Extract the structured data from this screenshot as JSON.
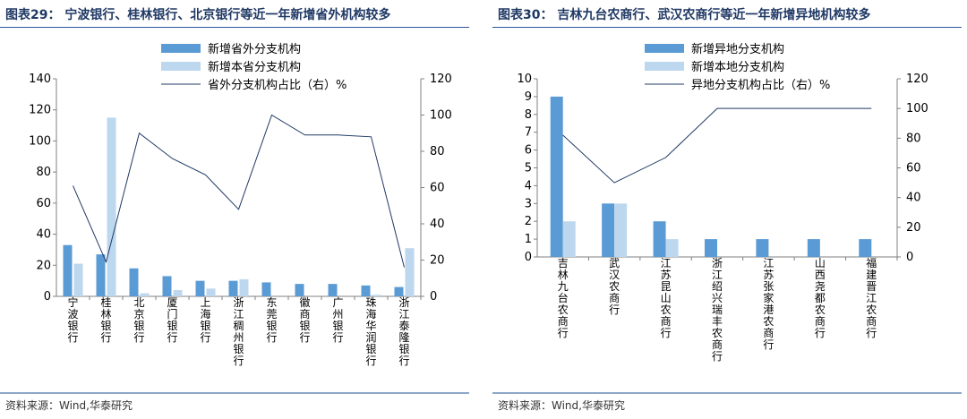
{
  "charts": [
    {
      "title": "图表29：  宁波银行、桂林银行、北京银行等近一年新增省外机构较多",
      "source": "资料来源：Wind,华泰研究",
      "legend": [
        {
          "label": "新增省外分支机构"
        },
        {
          "label": "新增本省分支机构"
        },
        {
          "label": "省外分支机构占比（右）%"
        }
      ]
    },
    {
      "title": "图表30：  吉林九台农商行、武汉农商行等近一年新增异地机构较多",
      "source": "资料来源：Wind,华泰研究",
      "legend": [
        {
          "label": "新增异地分支机构"
        },
        {
          "label": "新增本地分支机构"
        },
        {
          "label": "异地分支机构占比（右）%"
        }
      ]
    }
  ],
  "colors": {
    "bar_dark": "#5b9bd5",
    "bar_light": "#bdd7ee",
    "line": "#1f3864",
    "title": "#1f3864"
  },
  "chart_data": [
    {
      "type": "bar",
      "title": "宁波银行、桂林银行、北京银行等近一年新增省外机构较多",
      "categories": [
        "宁波银行",
        "桂林银行",
        "北京银行",
        "厦门银行",
        "上海银行",
        "浙江稠州银行",
        "东莞银行",
        "徽商银行",
        "广州银行",
        "珠海华润银行",
        "浙江泰隆银行"
      ],
      "series": [
        {
          "name": "新增省外分支机构",
          "kind": "bar",
          "axis": "left",
          "values": [
            33,
            27,
            18,
            13,
            10,
            10,
            9,
            8,
            8,
            7,
            6
          ]
        },
        {
          "name": "新增本省分支机构",
          "kind": "bar",
          "axis": "left",
          "values": [
            21,
            115,
            2,
            4,
            5,
            11,
            0,
            0,
            0,
            1,
            31
          ]
        },
        {
          "name": "省外分支机构占比（右）%",
          "kind": "line",
          "axis": "right",
          "values": [
            61,
            19,
            90,
            76,
            67,
            48,
            100,
            89,
            89,
            88,
            16
          ]
        }
      ],
      "ylim_left": [
        0,
        140
      ],
      "yticks_left": [
        0,
        20,
        40,
        60,
        80,
        100,
        120,
        140
      ],
      "ylim_right": [
        0,
        120
      ],
      "yticks_right": [
        0,
        20,
        40,
        60,
        80,
        100,
        120
      ]
    },
    {
      "type": "bar",
      "title": "吉林九台农商行、武汉农商行等近一年新增异地机构较多",
      "categories": [
        "吉林九台农商行",
        "武汉农商行",
        "江苏昆山农商行",
        "浙江绍兴瑞丰农商行",
        "江苏张家港农商行",
        "山西尧都农商行",
        "福建晋江农商行"
      ],
      "series": [
        {
          "name": "新增异地分支机构",
          "kind": "bar",
          "axis": "left",
          "values": [
            9,
            3,
            2,
            1,
            1,
            1,
            1
          ]
        },
        {
          "name": "新增本地分支机构",
          "kind": "bar",
          "axis": "left",
          "values": [
            2,
            3,
            1,
            0,
            0,
            0,
            0
          ]
        },
        {
          "name": "异地分支机构占比（右）%",
          "kind": "line",
          "axis": "right",
          "values": [
            82,
            50,
            67,
            100,
            100,
            100,
            100
          ]
        }
      ],
      "ylim_left": [
        0,
        10
      ],
      "yticks_left": [
        0,
        1,
        2,
        3,
        4,
        5,
        6,
        7,
        8,
        9,
        10
      ],
      "ylim_right": [
        0,
        120
      ],
      "yticks_right": [
        0,
        20,
        40,
        60,
        80,
        100,
        120
      ]
    }
  ]
}
